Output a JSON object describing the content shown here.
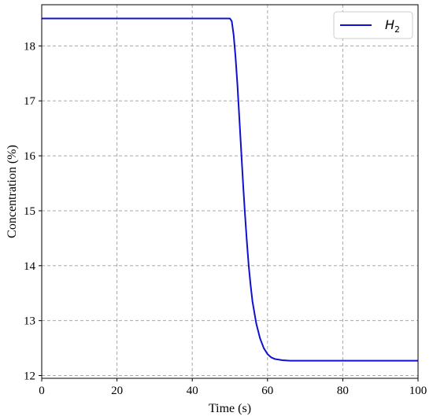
{
  "chart_data": {
    "type": "line",
    "title": "",
    "xlabel": "Time (s)",
    "ylabel": "Concentration (%)",
    "xlim": [
      0,
      100
    ],
    "ylim": [
      11.95,
      18.75
    ],
    "x_ticks": [
      0,
      20,
      40,
      60,
      80,
      100
    ],
    "x_tick_labels": [
      "0",
      "20",
      "40",
      "60",
      "80",
      "100"
    ],
    "y_ticks": [
      12,
      13,
      14,
      15,
      16,
      17,
      18
    ],
    "y_tick_labels": [
      "12",
      "13",
      "14",
      "15",
      "16",
      "17",
      "18"
    ],
    "grid": true,
    "legend_position": "top-right",
    "series": [
      {
        "name": "H",
        "name_subscript": "2",
        "color": "#1010d0",
        "x": [
          0,
          10,
          20,
          30,
          40,
          48,
          50,
          50.5,
          51,
          51.5,
          52,
          52.5,
          53,
          53.5,
          54,
          54.5,
          55,
          55.5,
          56,
          57,
          58,
          59,
          60,
          61,
          62,
          64,
          66,
          70,
          80,
          90,
          100
        ],
        "y": [
          18.5,
          18.5,
          18.5,
          18.5,
          18.5,
          18.5,
          18.5,
          18.45,
          18.2,
          17.8,
          17.3,
          16.7,
          16.1,
          15.5,
          14.95,
          14.45,
          14.0,
          13.65,
          13.35,
          12.95,
          12.68,
          12.5,
          12.39,
          12.33,
          12.3,
          12.28,
          12.27,
          12.27,
          12.27,
          12.27,
          12.27
        ]
      }
    ]
  }
}
